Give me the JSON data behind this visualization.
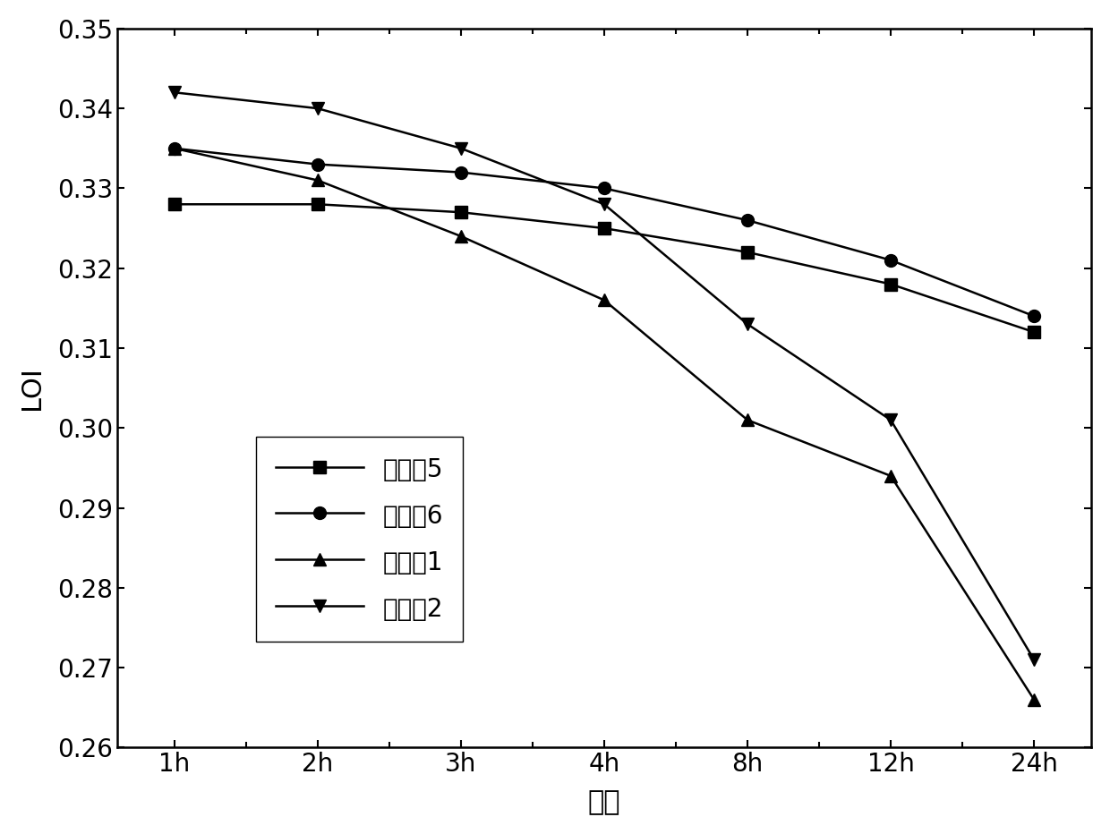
{
  "x_labels": [
    "1h",
    "2h",
    "3h",
    "4h",
    "8h",
    "12h",
    "24h"
  ],
  "x_positions": [
    0,
    1,
    2,
    3,
    4,
    5,
    6
  ],
  "series": [
    {
      "label": "实施例5",
      "values": [
        0.328,
        0.328,
        0.327,
        0.325,
        0.322,
        0.318,
        0.312
      ],
      "marker": "s",
      "linestyle": "-"
    },
    {
      "label": "实施例6",
      "values": [
        0.335,
        0.333,
        0.332,
        0.33,
        0.326,
        0.321,
        0.314
      ],
      "marker": "o",
      "linestyle": "-"
    },
    {
      "label": "对比例1",
      "values": [
        0.335,
        0.331,
        0.324,
        0.316,
        0.301,
        0.294,
        0.266
      ],
      "marker": "^",
      "linestyle": "-"
    },
    {
      "label": "对比例2",
      "values": [
        0.342,
        0.34,
        0.335,
        0.328,
        0.313,
        0.301,
        0.271
      ],
      "marker": "v",
      "linestyle": "-"
    }
  ],
  "ylabel": "LOI",
  "xlabel": "时间",
  "ylim": [
    0.26,
    0.35
  ],
  "yticks": [
    0.26,
    0.27,
    0.28,
    0.29,
    0.3,
    0.31,
    0.32,
    0.33,
    0.34,
    0.35
  ],
  "background_color": "#ffffff",
  "font_size": 22,
  "tick_font_size": 20,
  "marker_size": 10,
  "linewidth": 1.8
}
